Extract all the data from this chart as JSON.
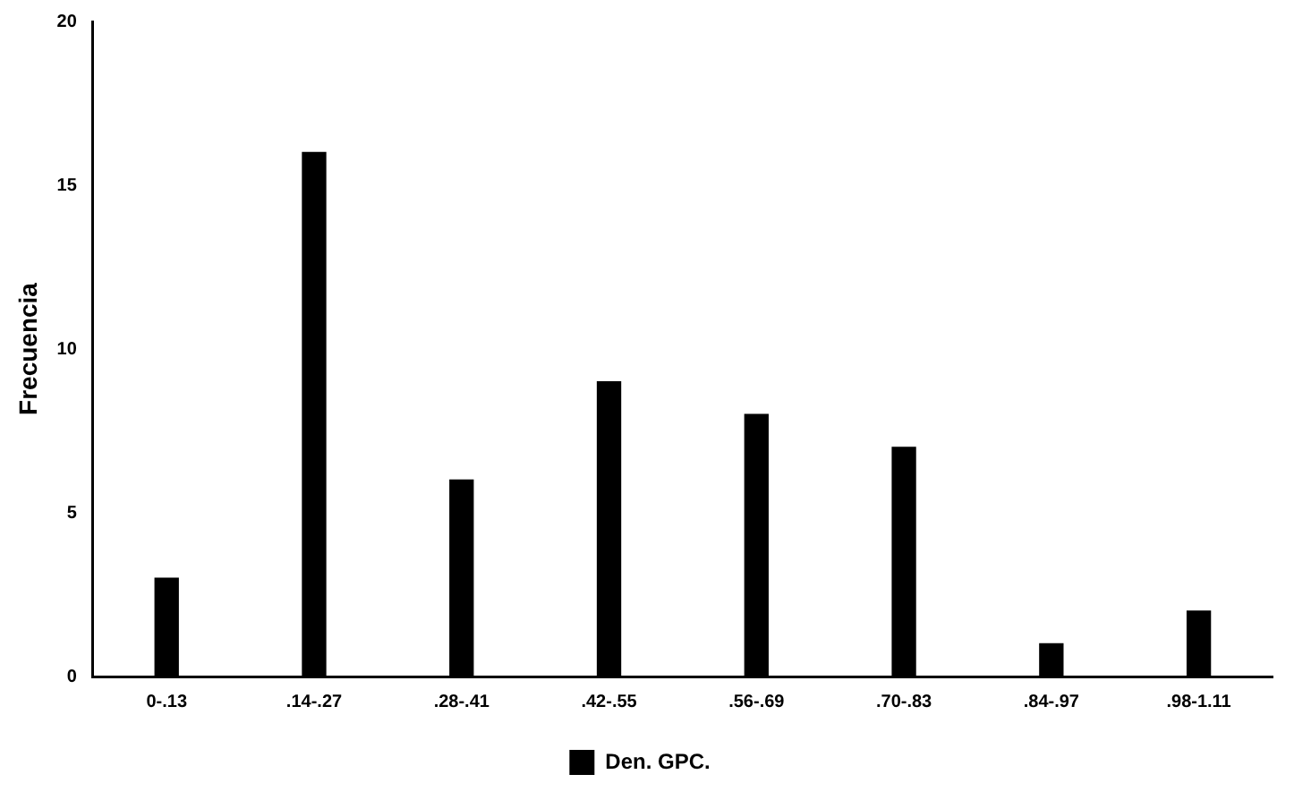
{
  "chart_data": {
    "type": "bar",
    "ylabel": "Frecuencia",
    "categories": [
      "0-.13",
      ".14-.27",
      ".28-.41",
      ".42-.55",
      ".56-.69",
      ".70-.83",
      ".84-.97",
      ".98-1.11"
    ],
    "series": [
      {
        "name": "Den. GPC.",
        "color": "#000000",
        "values": [
          3,
          16,
          6,
          9,
          8,
          7,
          1,
          2
        ]
      }
    ],
    "ylim": [
      0,
      20
    ],
    "yticks": [
      0,
      5,
      10,
      15,
      20
    ],
    "grid": false,
    "legend": "bottom"
  }
}
